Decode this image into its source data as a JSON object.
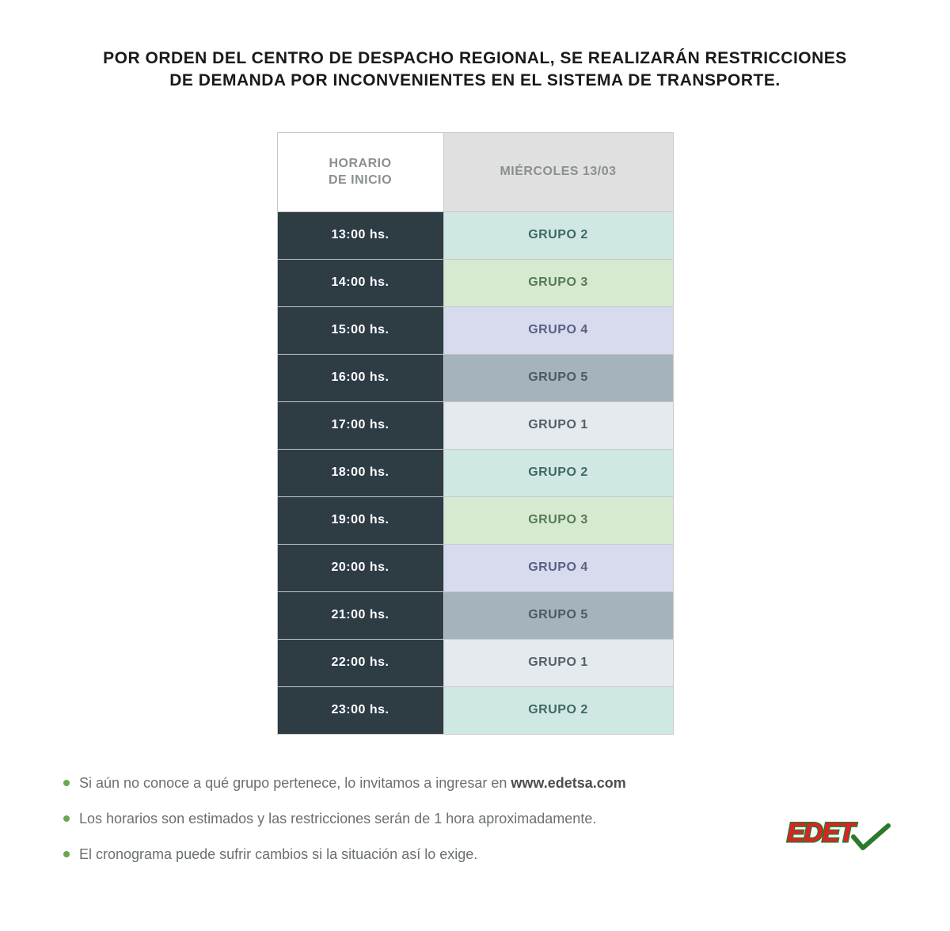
{
  "title": {
    "line1": "POR ORDEN DEL CENTRO DE DESPACHO REGIONAL, SE REALIZARÁN RESTRICCIONES",
    "line2": "DE DEMANDA POR INCONVENIENTES EN EL SISTEMA DE TRANSPORTE.",
    "color": "#1a1a1a",
    "fontsize": 21
  },
  "table": {
    "header": {
      "time_label_line1": "HORARIO",
      "time_label_line2": "DE INICIO",
      "day_label": "MIÉRCOLES 13/03",
      "time_bg": "#ffffff",
      "time_color": "#8a8f92",
      "day_bg": "#e0e0e0",
      "day_color": "#8a8f92",
      "fontsize": 16
    },
    "time_col": {
      "bg": "#2e3c44",
      "color": "#ffffff",
      "fontsize": 16
    },
    "group_col": {
      "fontsize": 16
    },
    "group_styles": {
      "1": {
        "bg": "#e4eaee",
        "color": "#536068"
      },
      "2": {
        "bg": "#d0e8e4",
        "color": "#3f6864"
      },
      "3": {
        "bg": "#d6ead2",
        "color": "#567a54"
      },
      "4": {
        "bg": "#d8dbee",
        "color": "#5a5f80"
      },
      "5": {
        "bg": "#a5b4bc",
        "color": "#4b5a62"
      }
    },
    "rows": [
      {
        "time": "13:00 hs.",
        "group": "GRUPO 2",
        "gid": "2"
      },
      {
        "time": "14:00 hs.",
        "group": "GRUPO 3",
        "gid": "3"
      },
      {
        "time": "15:00 hs.",
        "group": "GRUPO 4",
        "gid": "4"
      },
      {
        "time": "16:00 hs.",
        "group": "GRUPO 5",
        "gid": "5"
      },
      {
        "time": "17:00 hs.",
        "group": "GRUPO 1",
        "gid": "1"
      },
      {
        "time": "18:00 hs.",
        "group": "GRUPO 2",
        "gid": "2"
      },
      {
        "time": "19:00 hs.",
        "group": "GRUPO 3",
        "gid": "3"
      },
      {
        "time": "20:00 hs.",
        "group": "GRUPO 4",
        "gid": "4"
      },
      {
        "time": "21:00 hs.",
        "group": "GRUPO 5",
        "gid": "5"
      },
      {
        "time": "22:00 hs.",
        "group": "GRUPO 1",
        "gid": "1"
      },
      {
        "time": "23:00 hs.",
        "group": "GRUPO 2",
        "gid": "2"
      }
    ]
  },
  "notes": {
    "bullet_color": "#6aa84f",
    "text_color": "#6a6f72",
    "fontsize": 18,
    "items": [
      {
        "pre": "Si aún no conoce a qué grupo pertenece, lo invitamos a ingresar en ",
        "bold": "www.edetsa.com",
        "post": ""
      },
      {
        "pre": "Los horarios son estimados y las restricciones serán de 1 hora aproximadamente.",
        "bold": "",
        "post": ""
      },
      {
        "pre": "El cronograma puede sufrir cambios si la situación así lo exige.",
        "bold": "",
        "post": ""
      }
    ]
  },
  "logo": {
    "text": "EDET",
    "text_color": "#e41e26",
    "outline_color": "#2a7a2a",
    "check_color": "#2a7a2a",
    "fontsize": 34
  }
}
